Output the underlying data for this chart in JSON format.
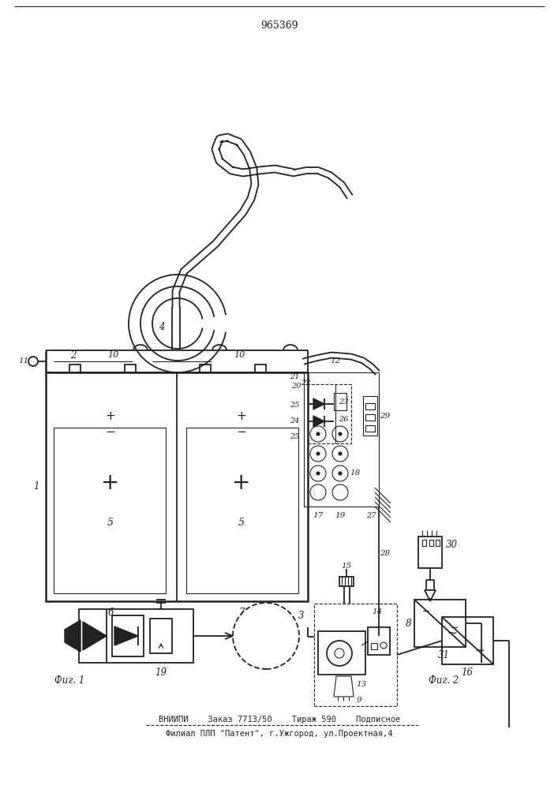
{
  "patent_number": "965369",
  "fig1_label": "Фиг. 1",
  "fig2_label": "Фиг. 2",
  "footer_line1": "ВНИИПИ    Заказ 7713/50    Тираж 590    Подписное",
  "footer_line2": "Филиал ПЛП \"Патент\", г.Ужгород, ул.Проектная,4",
  "bg_color": "#ffffff",
  "line_color": "#222222",
  "figsize": [
    7.07,
    10.0
  ],
  "dpi": 100
}
